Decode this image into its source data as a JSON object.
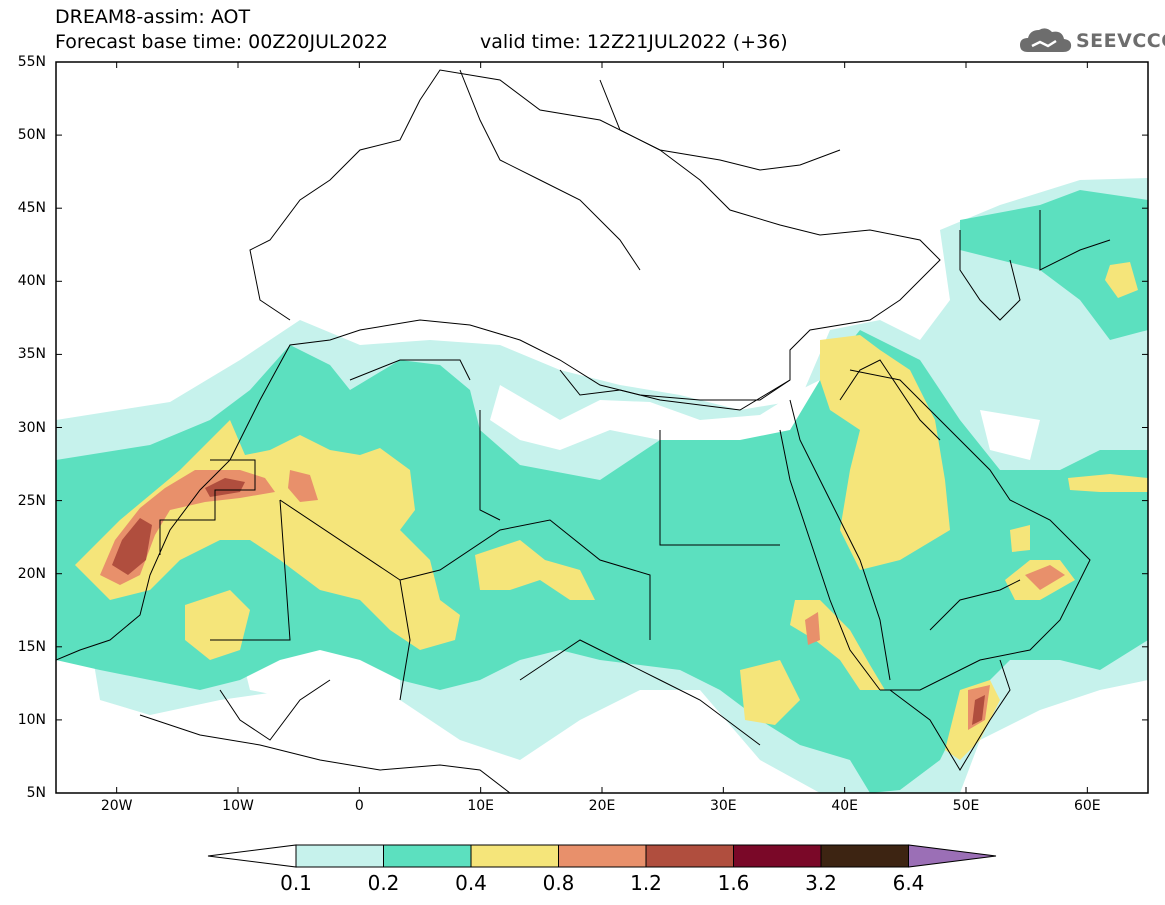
{
  "title": {
    "line1": "DREAM8-assim: AOT",
    "line2": "Forecast base time: 00Z20JUL2022",
    "valid": "valid time: 12Z21JUL2022 (+36)"
  },
  "logo": {
    "text": "SEEVCCC",
    "icon": "cloud-icon"
  },
  "map": {
    "variable": "AOT",
    "model": "DREAM8-assim",
    "lon_range": [
      -25,
      65
    ],
    "lat_range": [
      5,
      55
    ],
    "lat_labels": [
      "55N",
      "50N",
      "45N",
      "40N",
      "35N",
      "30N",
      "25N",
      "20N",
      "15N",
      "10N",
      "5N"
    ],
    "lon_labels": [
      "20W",
      "10W",
      "0",
      "10E",
      "20E",
      "30E",
      "40E",
      "50E",
      "60E"
    ]
  },
  "colorbar": {
    "thresholds": [
      "0.1",
      "0.2",
      "0.4",
      "0.8",
      "1.2",
      "1.6",
      "3.2",
      "6.4"
    ],
    "colors": [
      "#c6f2ec",
      "#5ce0bf",
      "#f5e57a",
      "#e8906b",
      "#b04e3e",
      "#7a0828",
      "#3d2412",
      "#9b6fb6"
    ]
  }
}
